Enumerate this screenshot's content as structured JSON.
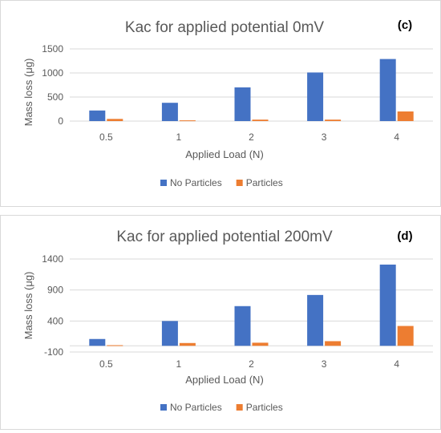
{
  "chart_data": [
    {
      "type": "bar",
      "title": "Kac for applied potential 0mV",
      "panel_label": "(c)",
      "xlabel": "Applied Load (N)",
      "ylabel": "Mass loss (μg)",
      "categories": [
        "0.5",
        "1",
        "2",
        "3",
        "4"
      ],
      "ylim": [
        0,
        1500
      ],
      "yticks": [
        0,
        500,
        1000,
        1500
      ],
      "grid": true,
      "legend_position": "bottom",
      "series": [
        {
          "name": "No Particles",
          "color": "#4472C4",
          "values": [
            220,
            380,
            700,
            1010,
            1290
          ]
        },
        {
          "name": "Particles",
          "color": "#ED7D31",
          "values": [
            45,
            15,
            30,
            30,
            200
          ]
        }
      ]
    },
    {
      "type": "bar",
      "title": "Kac for applied potential 200mV",
      "panel_label": "(d)",
      "xlabel": "Applied Load (N)",
      "ylabel": "Mass loss (μg)",
      "categories": [
        "0.5",
        "1",
        "2",
        "3",
        "4"
      ],
      "ylim": [
        -100,
        1400
      ],
      "yticks": [
        -100,
        400,
        900,
        1400
      ],
      "grid": true,
      "legend_position": "bottom",
      "series": [
        {
          "name": "No Particles",
          "color": "#4472C4",
          "values": [
            110,
            400,
            640,
            820,
            1310
          ]
        },
        {
          "name": "Particles",
          "color": "#ED7D31",
          "values": [
            10,
            45,
            50,
            75,
            320
          ]
        }
      ]
    }
  ]
}
